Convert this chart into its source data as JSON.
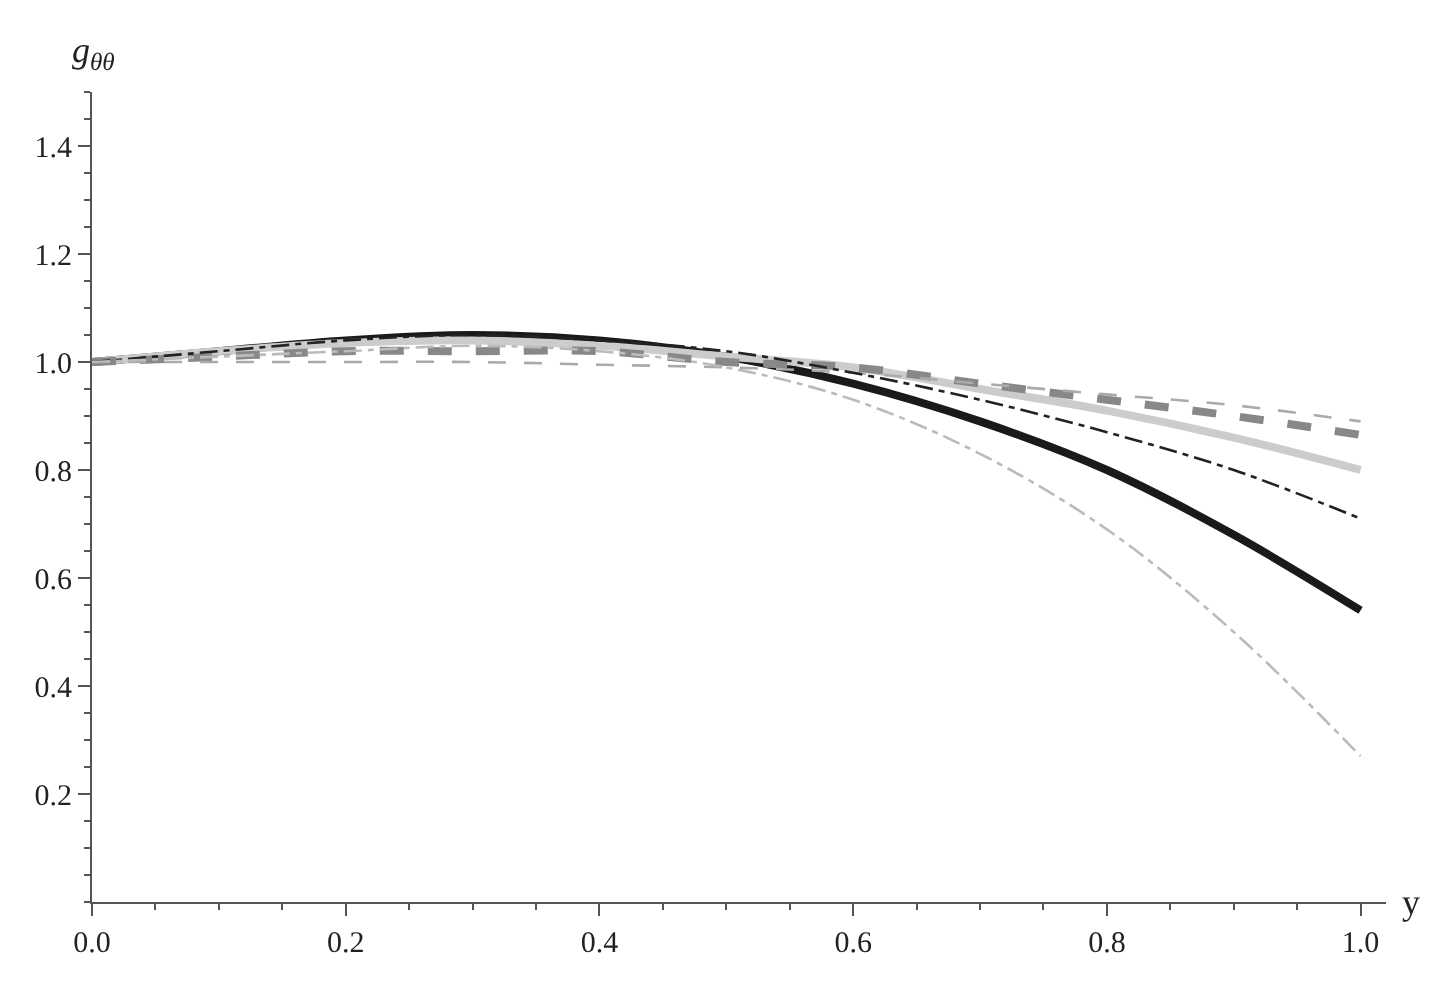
{
  "chart_data": {
    "type": "line",
    "xlabel": "y",
    "ylabel": "g$_{θθ}$",
    "x": [
      0,
      0.1,
      0.2,
      0.3,
      0.4,
      0.5,
      0.6,
      0.7,
      0.8,
      0.9,
      1.0
    ],
    "series": [
      {
        "color": "#1a1a1a",
        "line_style": "solid",
        "values": [
          1.0,
          1.02,
          1.04,
          1.05,
          1.04,
          1.01,
          0.96,
          0.89,
          0.8,
          0.68,
          0.54
        ]
      },
      {
        "color": "#cccccc",
        "line_style": "solid",
        "values": [
          1.0,
          1.02,
          1.035,
          1.04,
          1.03,
          1.01,
          0.99,
          0.95,
          0.91,
          0.86,
          0.8
        ]
      },
      {
        "color": "#888888",
        "line_style": "dashed",
        "values": [
          1.0,
          1.01,
          1.02,
          1.02,
          1.02,
          1.0,
          0.99,
          0.96,
          0.93,
          0.9,
          0.865
        ]
      },
      {
        "color": "#aaaaaa",
        "line_style": "dashed",
        "values": [
          1.0,
          1.0,
          1.0,
          1.0,
          0.995,
          0.99,
          0.98,
          0.96,
          0.94,
          0.92,
          0.89
        ]
      },
      {
        "color": "#222222",
        "line_style": "dashdot",
        "values": [
          1.0,
          1.02,
          1.04,
          1.05,
          1.04,
          1.02,
          0.98,
          0.93,
          0.87,
          0.8,
          0.71
        ]
      },
      {
        "color": "#bbbbbb",
        "line_style": "dashdot",
        "values": [
          1.0,
          1.01,
          1.02,
          1.03,
          1.02,
          0.99,
          0.93,
          0.83,
          0.69,
          0.5,
          0.27
        ]
      }
    ],
    "xlim": [
      0,
      1.02
    ],
    "ylim": [
      0,
      1.5
    ],
    "xticks": [
      {
        "value": 0,
        "label": "0.0"
      },
      0.2,
      0.4,
      0.6,
      0.8,
      {
        "value": 1.0,
        "label": "1.0"
      }
    ],
    "yticks": [
      0.2,
      0.4,
      0.6,
      0.8,
      {
        "value": 1.0,
        "label": "1.0"
      },
      1.2,
      1.4
    ],
    "marker": "none"
  }
}
